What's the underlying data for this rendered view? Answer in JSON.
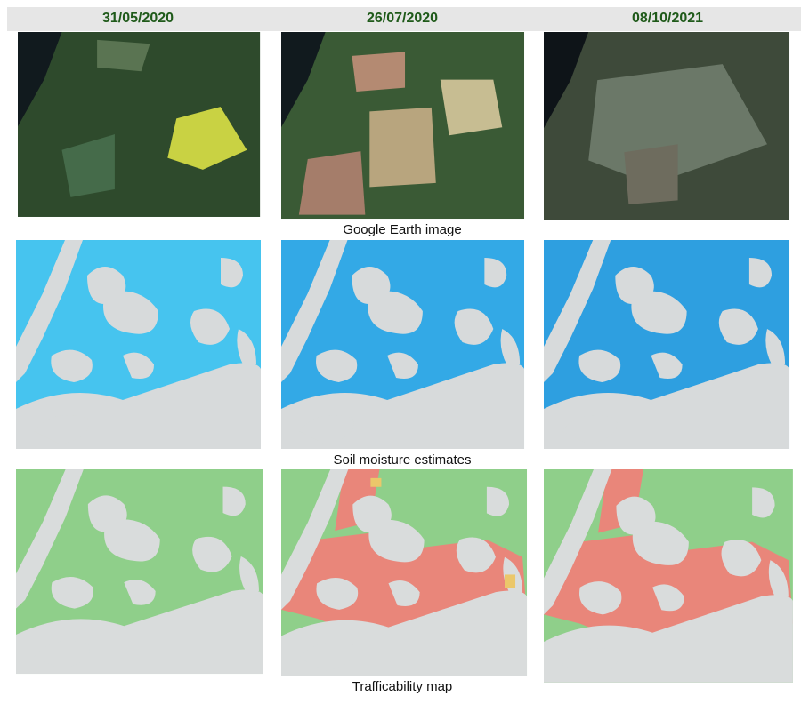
{
  "header": {
    "dates": [
      "31/05/2020",
      "26/07/2020",
      "08/10/2021"
    ]
  },
  "rows": [
    {
      "caption": "Google Earth image"
    },
    {
      "caption": "Soil moisture estimates"
    },
    {
      "caption": "Trafficability map"
    }
  ]
}
